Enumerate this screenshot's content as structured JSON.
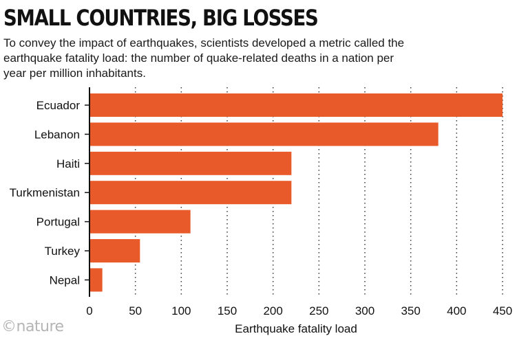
{
  "title": "SMALL COUNTRIES, BIG LOSSES",
  "subtitle": "To convey the impact of earthquakes, scientists developed a metric called the earthquake fatality load: the number of quake-related deaths in a nation per year per million inhabitants.",
  "logo": "©nature",
  "colors": {
    "bar": "#e85a2a",
    "grid": "#333333",
    "axis": "#111111"
  },
  "chart_data": {
    "type": "bar",
    "orientation": "horizontal",
    "categories": [
      "Ecuador",
      "Lebanon",
      "Haiti",
      "Turkmenistan",
      "Portugal",
      "Turkey",
      "Nepal"
    ],
    "values": [
      450,
      380,
      220,
      220,
      110,
      55,
      14
    ],
    "xlabel": "Earthquake fatality load",
    "xlim": [
      0,
      450
    ],
    "xticks": [
      0,
      50,
      100,
      150,
      200,
      250,
      300,
      350,
      400,
      450
    ],
    "grid": "vertical dotted"
  }
}
